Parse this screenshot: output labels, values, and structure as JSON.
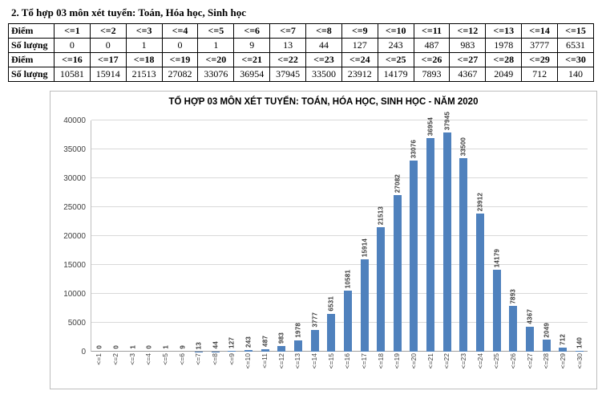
{
  "page": {
    "heading": "2. Tổ hợp 03 môn xét tuyển: Toán, Hóa học, Sinh học"
  },
  "table": {
    "row_label_diem": "Điểm",
    "row_label_soluong": "Số lượng",
    "rows": [
      {
        "diem": [
          "<=1",
          "<=2",
          "<=3",
          "<=4",
          "<=5",
          "<=6",
          "<=7",
          "<=8",
          "<=9",
          "<=10",
          "<=11",
          "<=12",
          "<=13",
          "<=14",
          "<=15"
        ],
        "soluong": [
          "0",
          "0",
          "1",
          "0",
          "1",
          "9",
          "13",
          "44",
          "127",
          "243",
          "487",
          "983",
          "1978",
          "3777",
          "6531"
        ]
      },
      {
        "diem": [
          "<=16",
          "<=17",
          "<=18",
          "<=19",
          "<=20",
          "<=21",
          "<=22",
          "<=23",
          "<=24",
          "<=25",
          "<=26",
          "<=27",
          "<=28",
          "<=29",
          "<=30"
        ],
        "soluong": [
          "10581",
          "15914",
          "21513",
          "27082",
          "33076",
          "36954",
          "37945",
          "33500",
          "23912",
          "14179",
          "7893",
          "4367",
          "2049",
          "712",
          "140"
        ]
      }
    ]
  },
  "chart_data": {
    "type": "bar",
    "title": "TỔ HỢP 03 MÔN XÉT TUYỂN: TOÁN, HÓA HỌC, SINH HỌC - NĂM 2020",
    "categories": [
      "<=1",
      "<=2",
      "<=3",
      "<=4",
      "<=5",
      "<=6",
      "<=7",
      "<=8",
      "<=9",
      "<=10",
      "<=11",
      "<=12",
      "<=13",
      "<=14",
      "<=15",
      "<=16",
      "<=17",
      "<=18",
      "<=19",
      "<=20",
      "<=21",
      "<=22",
      "<=23",
      "<=24",
      "<=25",
      "<=26",
      "<=27",
      "<=28",
      "<=29",
      "<=30"
    ],
    "values": [
      0,
      0,
      1,
      0,
      1,
      9,
      13,
      44,
      127,
      243,
      487,
      983,
      1978,
      3777,
      6531,
      10581,
      15914,
      21513,
      27082,
      33076,
      36954,
      37945,
      33500,
      23912,
      14179,
      7893,
      4367,
      2049,
      712,
      140
    ],
    "xlabel": "",
    "ylabel": "",
    "ylim": [
      0,
      40000
    ],
    "ytick_step": 5000,
    "grid": true,
    "legend": "none",
    "data_labels": "rotated-vertical",
    "bar_color": "#4f81bd",
    "gridline_color": "#d9d9d9"
  }
}
